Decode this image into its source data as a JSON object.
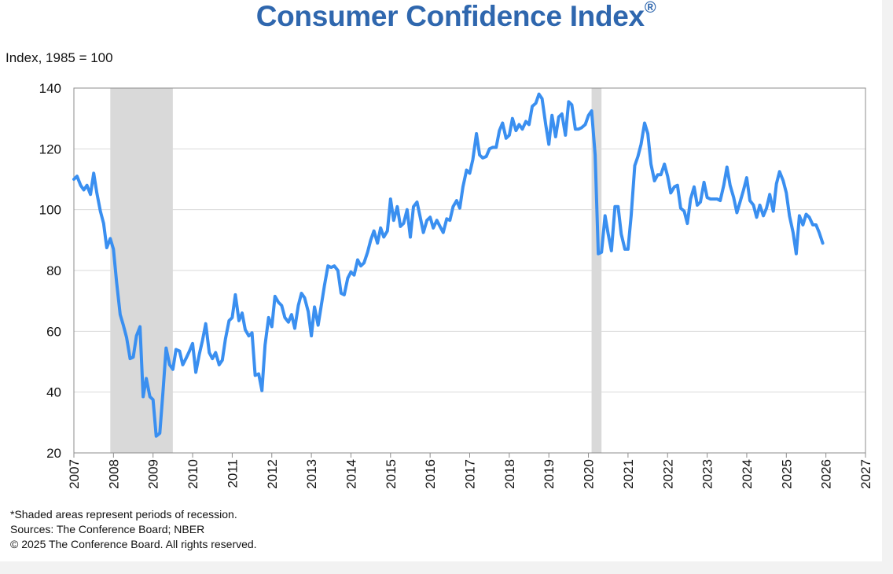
{
  "chart_data": {
    "type": "line",
    "title": "Consumer Confidence Index",
    "title_mark": "®",
    "ylabel": "Index, 1985 = 100",
    "xlabel": "",
    "xlim": [
      2007,
      2027
    ],
    "ylim": [
      20,
      140
    ],
    "yticks": [
      "20",
      "40",
      "60",
      "80",
      "100",
      "120",
      "140"
    ],
    "xticks": [
      "2007",
      "2008",
      "2009",
      "2010",
      "2011",
      "2012",
      "2013",
      "2014",
      "2015",
      "2016",
      "2017",
      "2018",
      "2019",
      "2020",
      "2021",
      "2022",
      "2023",
      "2024",
      "2025",
      "2026",
      "2027"
    ],
    "grid": true,
    "recessions": [
      {
        "start": 2007.92,
        "end": 2009.5
      },
      {
        "start": 2020.08,
        "end": 2020.33
      }
    ],
    "series": [
      {
        "name": "Consumer Confidence Index",
        "color": "#3a8ff0",
        "x": [
          2007.0,
          2007.08,
          2007.17,
          2007.25,
          2007.33,
          2007.42,
          2007.5,
          2007.58,
          2007.67,
          2007.75,
          2007.83,
          2007.92,
          2008.0,
          2008.08,
          2008.17,
          2008.25,
          2008.33,
          2008.42,
          2008.5,
          2008.58,
          2008.67,
          2008.75,
          2008.83,
          2008.92,
          2009.0,
          2009.08,
          2009.17,
          2009.25,
          2009.33,
          2009.42,
          2009.5,
          2009.58,
          2009.67,
          2009.75,
          2009.83,
          2009.92,
          2010.0,
          2010.08,
          2010.17,
          2010.25,
          2010.33,
          2010.42,
          2010.5,
          2010.58,
          2010.67,
          2010.75,
          2010.83,
          2010.92,
          2011.0,
          2011.08,
          2011.17,
          2011.25,
          2011.33,
          2011.42,
          2011.5,
          2011.58,
          2011.67,
          2011.75,
          2011.83,
          2011.92,
          2012.0,
          2012.08,
          2012.17,
          2012.25,
          2012.33,
          2012.42,
          2012.5,
          2012.58,
          2012.67,
          2012.75,
          2012.83,
          2012.92,
          2013.0,
          2013.08,
          2013.17,
          2013.25,
          2013.33,
          2013.42,
          2013.5,
          2013.58,
          2013.67,
          2013.75,
          2013.83,
          2013.92,
          2014.0,
          2014.08,
          2014.17,
          2014.25,
          2014.33,
          2014.42,
          2014.5,
          2014.58,
          2014.67,
          2014.75,
          2014.83,
          2014.92,
          2015.0,
          2015.08,
          2015.17,
          2015.25,
          2015.33,
          2015.42,
          2015.5,
          2015.58,
          2015.67,
          2015.75,
          2015.83,
          2015.92,
          2016.0,
          2016.08,
          2016.17,
          2016.25,
          2016.33,
          2016.42,
          2016.5,
          2016.58,
          2016.67,
          2016.75,
          2016.83,
          2016.92,
          2017.0,
          2017.08,
          2017.17,
          2017.25,
          2017.33,
          2017.42,
          2017.5,
          2017.58,
          2017.67,
          2017.75,
          2017.83,
          2017.92,
          2018.0,
          2018.08,
          2018.17,
          2018.25,
          2018.33,
          2018.42,
          2018.5,
          2018.58,
          2018.67,
          2018.75,
          2018.83,
          2018.92,
          2019.0,
          2019.08,
          2019.17,
          2019.25,
          2019.33,
          2019.42,
          2019.5,
          2019.58,
          2019.67,
          2019.75,
          2019.83,
          2019.92,
          2020.0,
          2020.08,
          2020.17,
          2020.25,
          2020.33,
          2020.42,
          2020.5,
          2020.58,
          2020.67,
          2020.75,
          2020.83,
          2020.92,
          2021.0,
          2021.08,
          2021.17,
          2021.25,
          2021.33,
          2021.42,
          2021.5,
          2021.58,
          2021.67,
          2021.75,
          2021.83,
          2021.92,
          2022.0,
          2022.08,
          2022.17,
          2022.25,
          2022.33,
          2022.42,
          2022.5,
          2022.58,
          2022.67,
          2022.75,
          2022.83,
          2022.92,
          2023.0,
          2023.08,
          2023.17,
          2023.25,
          2023.33,
          2023.42,
          2023.5,
          2023.58,
          2023.67,
          2023.75,
          2023.83,
          2023.92,
          2024.0,
          2024.08,
          2024.17,
          2024.25,
          2024.33,
          2024.42,
          2024.5,
          2024.58,
          2024.67,
          2024.75,
          2024.83,
          2024.92,
          2025.0,
          2025.08,
          2025.17,
          2025.25,
          2025.33,
          2025.42,
          2025.5,
          2025.58,
          2025.67,
          2025.75,
          2025.83,
          2025.92
        ],
        "values": [
          110,
          111,
          108,
          106.5,
          108,
          105,
          112,
          105.5,
          99.5,
          95.5,
          87.5,
          90.5,
          87,
          76,
          65.5,
          62,
          58,
          51,
          51.5,
          58.5,
          61.5,
          38.5,
          44.5,
          38.5,
          37.5,
          25.5,
          26.5,
          40,
          54.5,
          49,
          47.5,
          54,
          53.5,
          49,
          51,
          53.5,
          56,
          46.5,
          52.5,
          57,
          62.5,
          53,
          51,
          53,
          49,
          50.5,
          57.5,
          63.5,
          64.5,
          72,
          63.5,
          66,
          60.5,
          58.5,
          59.5,
          45.5,
          46,
          40.5,
          55.5,
          64.5,
          61.5,
          71.5,
          69.5,
          68.5,
          64.5,
          63,
          65.5,
          61,
          68.5,
          72.5,
          71,
          66.5,
          58.5,
          68,
          62,
          68.5,
          75,
          81.5,
          81,
          81.5,
          80,
          72.5,
          72,
          77.5,
          79.5,
          78.5,
          83.5,
          81.5,
          82.5,
          86,
          90,
          93,
          89,
          94,
          91,
          93,
          103.5,
          96.5,
          101,
          94.5,
          95.5,
          100,
          91,
          101,
          102.5,
          97.5,
          92.5,
          96.5,
          97.5,
          94,
          96.5,
          94.5,
          92.5,
          97,
          96.5,
          101,
          103,
          100.5,
          107.5,
          113,
          112,
          116.5,
          125,
          118,
          117,
          117.5,
          120,
          120.5,
          120.5,
          126,
          128.5,
          123.5,
          124.5,
          130,
          126,
          128,
          126.5,
          129,
          128,
          134,
          135,
          138,
          136.5,
          128,
          121.5,
          131,
          124,
          130.5,
          131.5,
          124.5,
          135.5,
          134.5,
          126.5,
          126.5,
          127,
          128,
          131,
          132.5,
          118,
          85.5,
          86,
          98,
          92,
          86.5,
          101,
          101,
          92,
          87,
          87,
          98,
          114.5,
          117.5,
          121.5,
          128.5,
          125,
          115,
          109.5,
          111.5,
          111.5,
          115,
          111,
          105.5,
          107.5,
          108,
          100.5,
          99.5,
          95.5,
          103.5,
          107.5,
          101.5,
          102.5,
          109,
          104,
          103.5,
          103.5,
          103.5,
          103,
          108,
          114,
          108,
          104,
          99,
          102.5,
          106.5,
          110.5,
          103,
          101.5,
          97.5,
          101.5,
          98,
          100.5,
          105,
          99.5,
          108.5,
          112.5,
          109.5,
          105.5,
          98,
          92.5,
          85.5,
          98,
          95,
          98.5,
          97.5,
          95,
          95,
          92.5,
          89
        ]
      }
    ]
  },
  "footnotes": {
    "recession_note": "*Shaded areas represent periods of recession.",
    "sources": "Sources:  The Conference Board;  NBER",
    "copyright": "© 2025 The Conference Board. All rights reserved."
  },
  "colors": {
    "title": "#2f67ae",
    "line": "#3a8ff0",
    "recession": "#d9d9d9",
    "grid": "#d9d9d9",
    "axis": "#8c8c8c"
  }
}
